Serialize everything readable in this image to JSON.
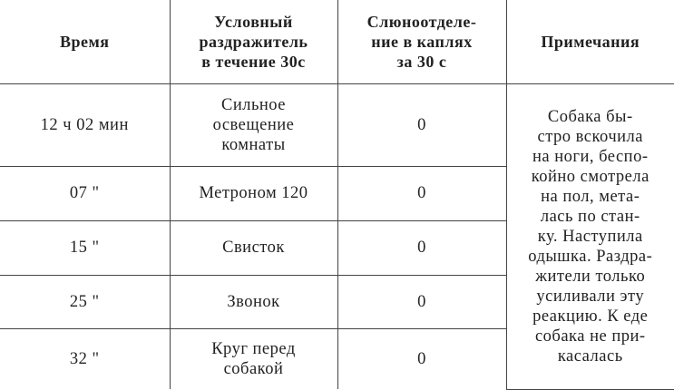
{
  "table": {
    "headers": [
      "Время",
      "Условный\nраздражитель\nв течение 30с",
      "Слюноотделе-\nние в каплях\nза 30 с",
      "Примечания"
    ],
    "rows": [
      {
        "time": "12 ч  02 мин",
        "stimulus": "Сильное\nосвещение\nкомнаты",
        "saliva": "0"
      },
      {
        "time": "07 \"",
        "stimulus": "Метроном 120",
        "saliva": "0"
      },
      {
        "time": "15 \"",
        "stimulus": "Свисток",
        "saliva": "0"
      },
      {
        "time": "25 \"",
        "stimulus": "Звонок",
        "saliva": "0"
      },
      {
        "time": "32 \"",
        "stimulus": "Круг перед\nсобакой",
        "saliva": "0"
      }
    ],
    "note": "Собака бы-\nстро вскочила\nна ноги, беспо-\nкойно смотрела\nна пол, мета-\nлась по стан-\nку. Наступила\nодышка. Раздра-\nжители только\nусиливали эту\nреакцию. К еде\nсобака не при-\nкасалась"
  }
}
